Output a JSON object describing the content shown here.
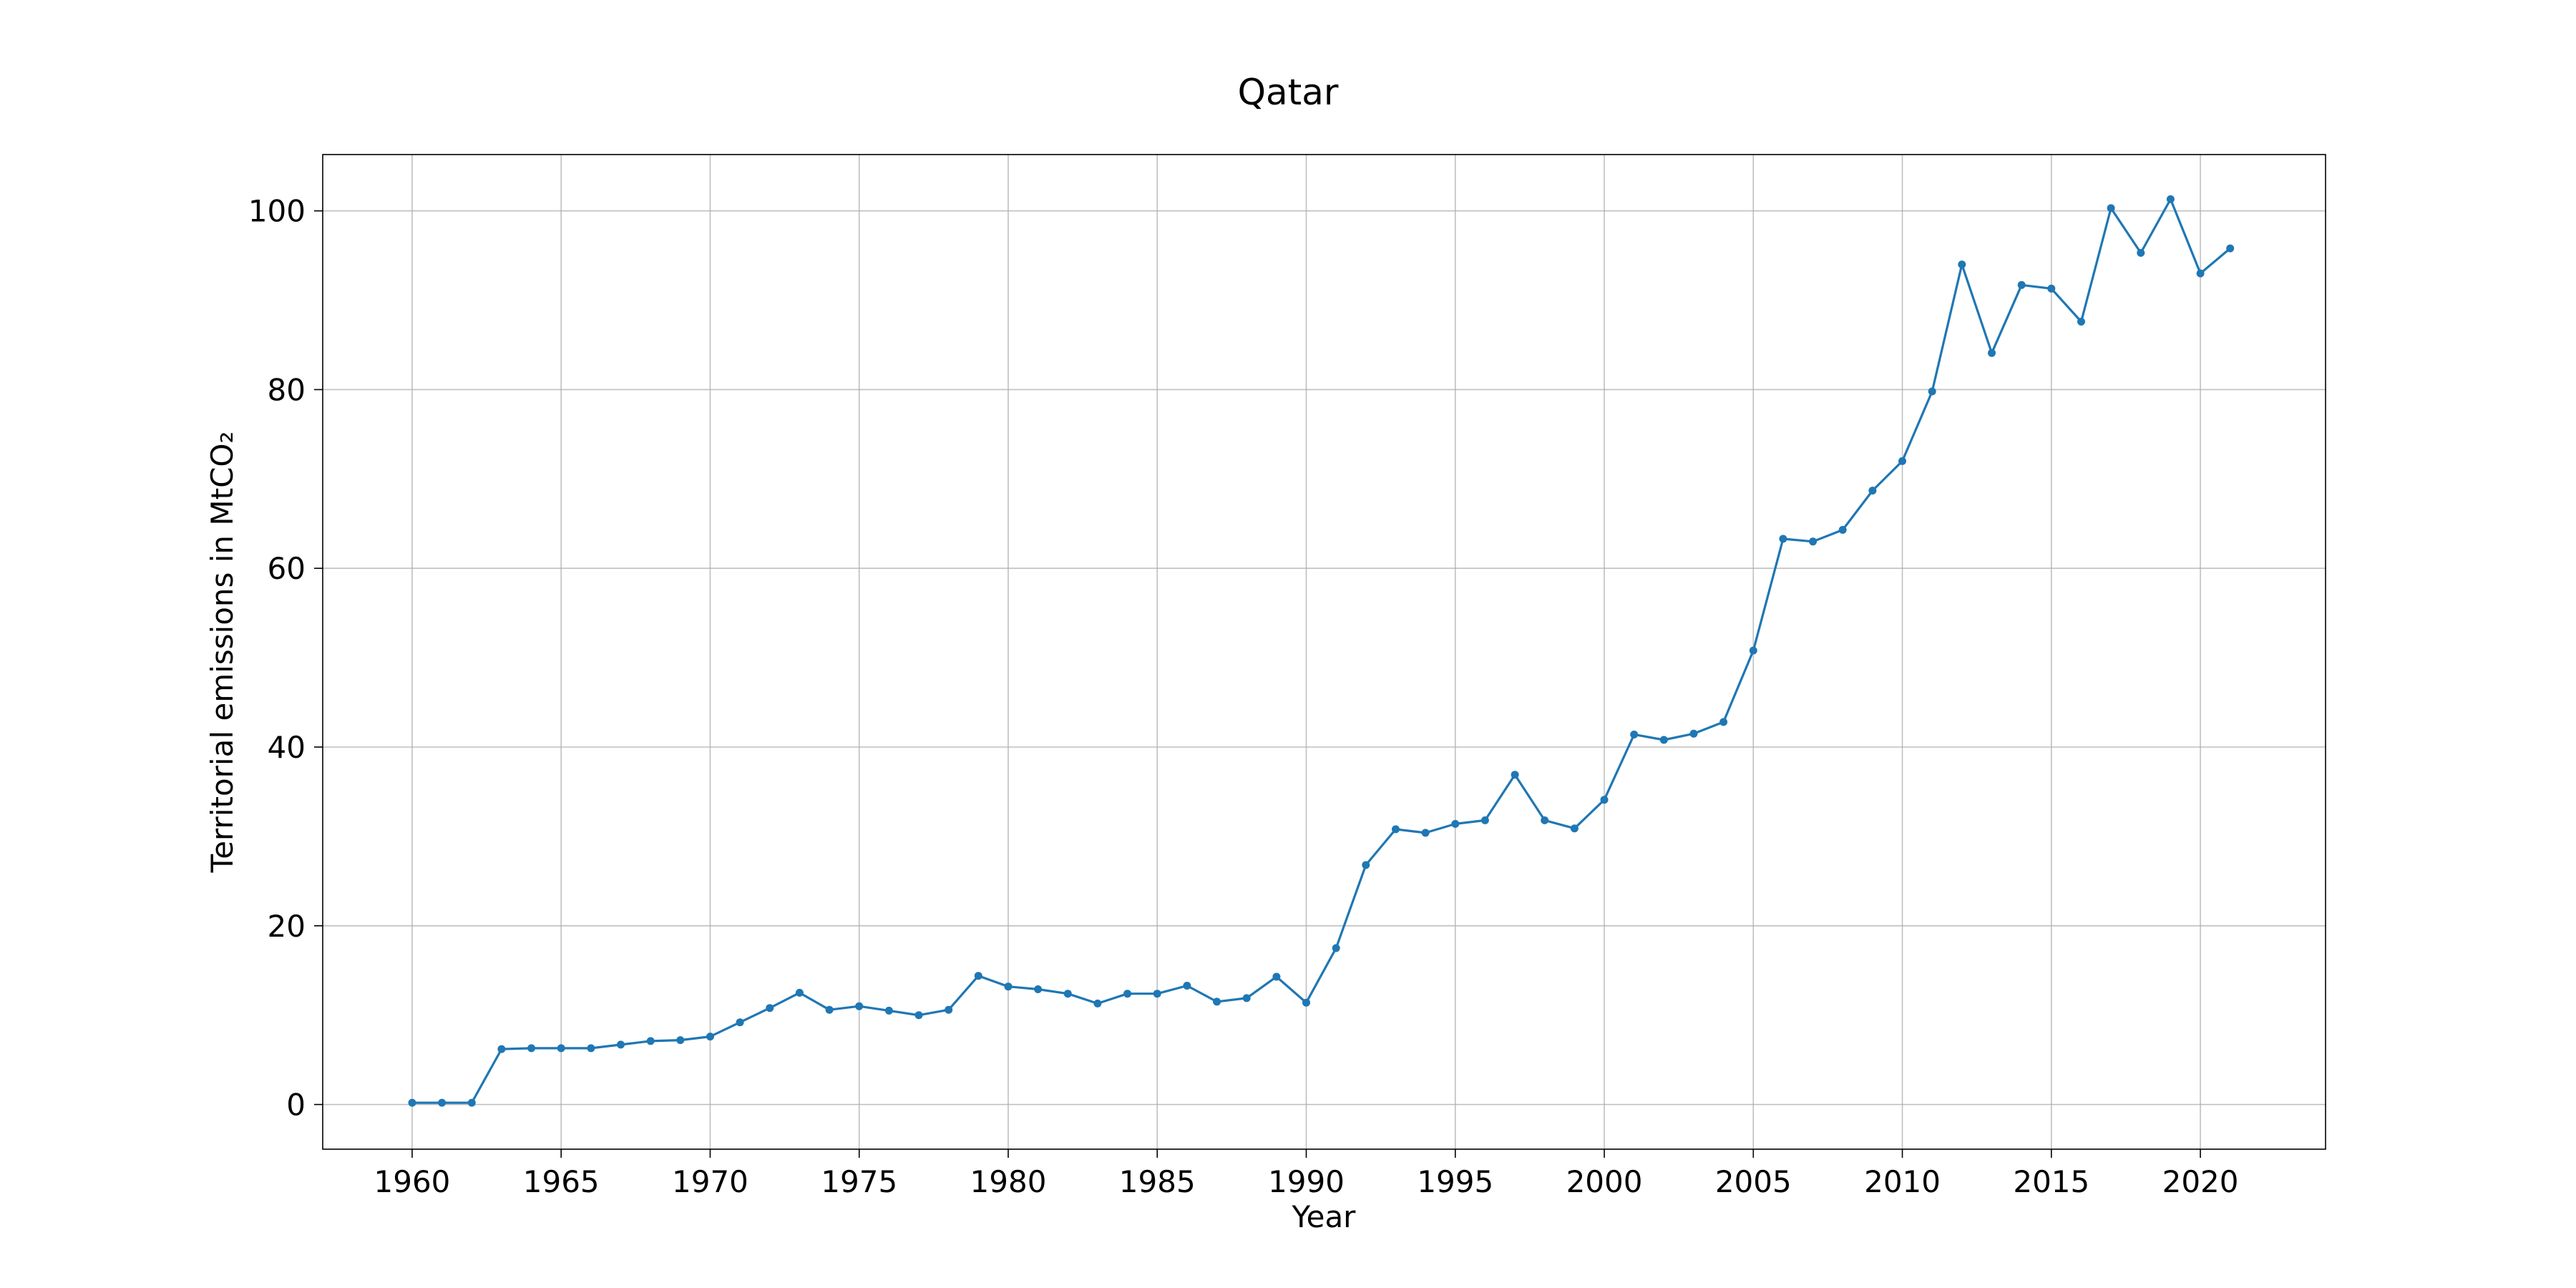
{
  "chart_data": {
    "type": "line",
    "title": "Qatar",
    "xlabel": "Year",
    "ylabel": "Territorial emissions in MtCO₂",
    "xlim": [
      1957,
      2024.2
    ],
    "ylim": [
      -5,
      106.3
    ],
    "xticks": [
      1960,
      1965,
      1970,
      1975,
      1980,
      1985,
      1990,
      1995,
      2000,
      2005,
      2010,
      2015,
      2020
    ],
    "yticks": [
      0,
      20,
      40,
      60,
      80,
      100
    ],
    "grid": true,
    "legend": "none",
    "color": "#1f77b4",
    "x": [
      1960,
      1961,
      1962,
      1963,
      1964,
      1965,
      1966,
      1967,
      1968,
      1969,
      1970,
      1971,
      1972,
      1973,
      1974,
      1975,
      1976,
      1977,
      1978,
      1979,
      1980,
      1981,
      1982,
      1983,
      1984,
      1985,
      1986,
      1987,
      1988,
      1989,
      1990,
      1991,
      1992,
      1993,
      1994,
      1995,
      1996,
      1997,
      1998,
      1999,
      2000,
      2001,
      2002,
      2003,
      2004,
      2005,
      2006,
      2007,
      2008,
      2009,
      2010,
      2011,
      2012,
      2013,
      2014,
      2015,
      2016,
      2017,
      2018,
      2019,
      2020,
      2021
    ],
    "y": [
      0.2,
      0.2,
      0.2,
      6.2,
      6.3,
      6.3,
      6.3,
      6.7,
      7.1,
      7.2,
      7.6,
      9.2,
      10.8,
      12.5,
      10.6,
      11.0,
      10.5,
      10.0,
      10.6,
      14.4,
      13.2,
      12.9,
      12.4,
      11.3,
      12.4,
      12.4,
      13.3,
      11.5,
      11.9,
      14.3,
      11.4,
      17.5,
      26.8,
      30.8,
      30.4,
      31.4,
      31.8,
      36.9,
      31.8,
      30.9,
      34.1,
      41.4,
      40.8,
      41.5,
      42.8,
      50.8,
      63.3,
      63.0,
      64.3,
      68.7,
      72.0,
      79.8,
      94.0,
      84.1,
      91.7,
      91.3,
      87.6,
      100.3,
      95.3,
      101.3,
      93.0,
      95.8
    ]
  }
}
